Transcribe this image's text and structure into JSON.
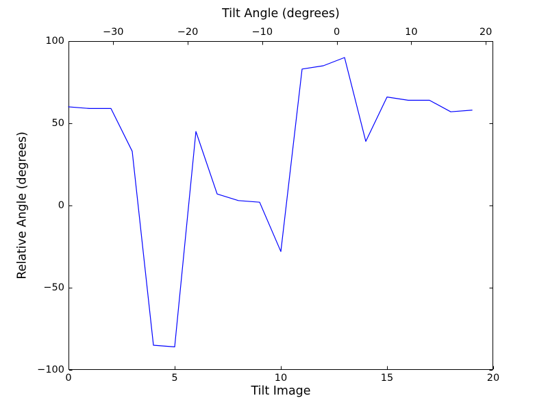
{
  "figure": {
    "background": "#ffffff",
    "axis_color": "#000000"
  },
  "chart_data": {
    "type": "line",
    "title": "",
    "top_xlabel": "Tilt Angle (degrees)",
    "xlabel": "Tilt Image",
    "ylabel": "Relative Angle (degrees)",
    "x": [
      0,
      1,
      2,
      3,
      4,
      5,
      6,
      7,
      8,
      9,
      10,
      11,
      12,
      13,
      14,
      15,
      16,
      17,
      18,
      19
    ],
    "y": [
      60,
      59,
      59,
      33,
      -85,
      -86,
      45,
      7,
      3,
      2,
      -28,
      83,
      85,
      90,
      39,
      66,
      64,
      64,
      57,
      58
    ],
    "xlim": [
      0,
      20
    ],
    "ylim": [
      -100,
      100
    ],
    "top_xlim": [
      -36,
      21
    ],
    "xticks": {
      "values": [
        0,
        5,
        10,
        15,
        20
      ],
      "labels": [
        "0",
        "5",
        "10",
        "15",
        "20"
      ]
    },
    "yticks": {
      "values": [
        100,
        50,
        0,
        -50,
        -100
      ],
      "labels": [
        "100",
        "50",
        "0",
        "−50",
        "−100"
      ]
    },
    "top_xticks": {
      "values": [
        -30,
        -20,
        -10,
        0,
        10,
        20
      ],
      "labels": [
        "−30",
        "−20",
        "−10",
        "0",
        "10",
        "20"
      ]
    },
    "grid": false,
    "legend": null,
    "line_color": "#0000ff",
    "line_width": 1.2,
    "tick_length": 4.5
  }
}
